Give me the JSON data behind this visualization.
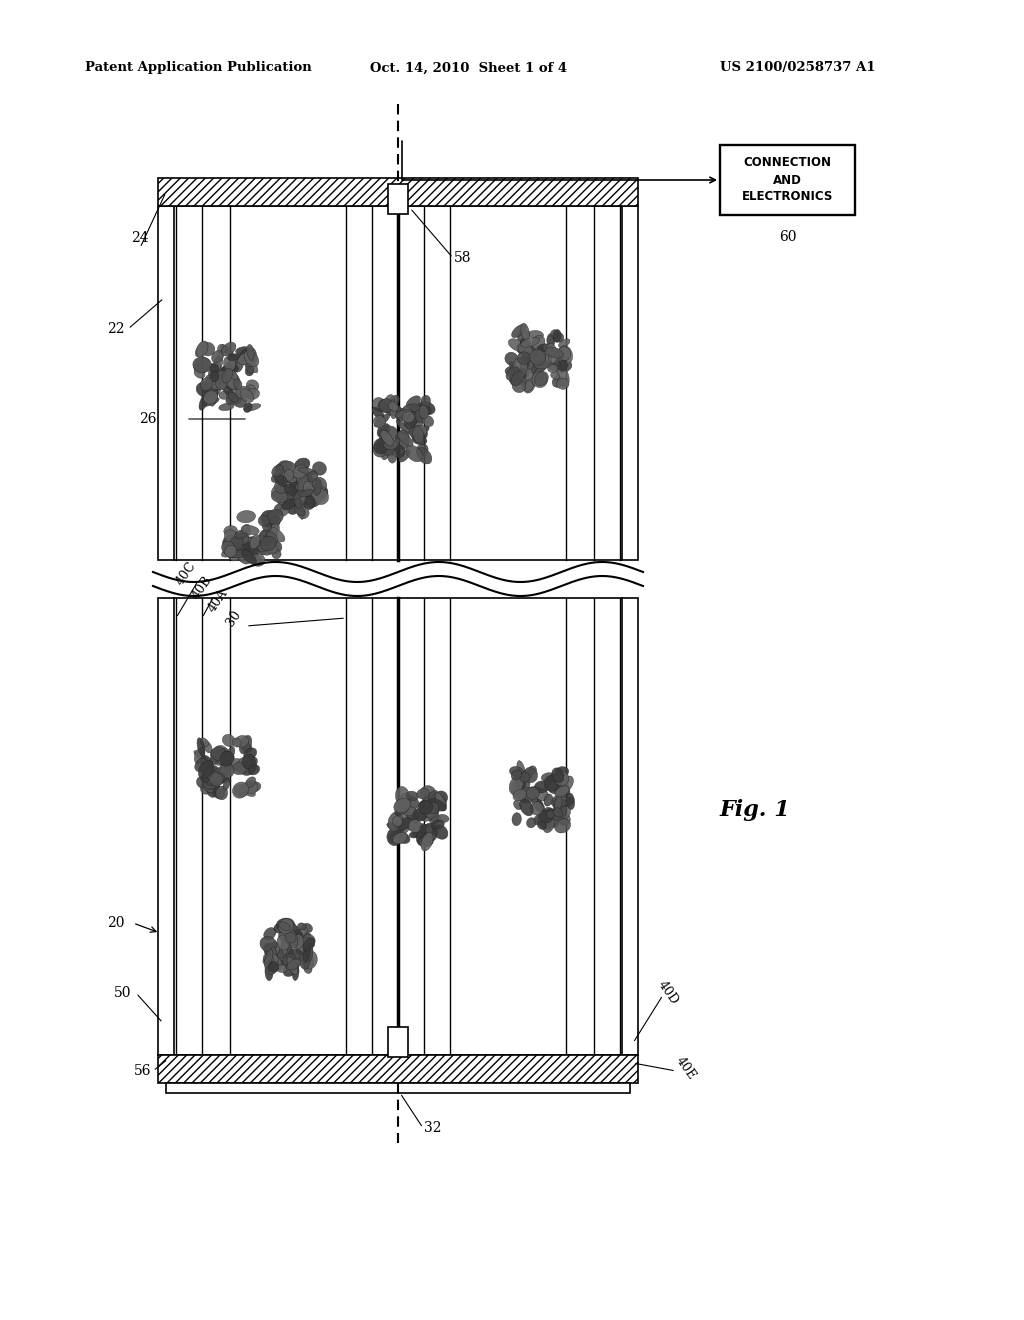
{
  "bg_color": "#ffffff",
  "text_color": "#000000",
  "header_left": "Patent Application Publication",
  "header_mid": "Oct. 14, 2010  Sheet 1 of 4",
  "header_right": "US 2100/0258737 A1",
  "fig_label": "Fig. 1",
  "box_label": "CONNECTION\nAND\nELECTRONICS",
  "box_label_num": "60",
  "line_width": 1.2
}
